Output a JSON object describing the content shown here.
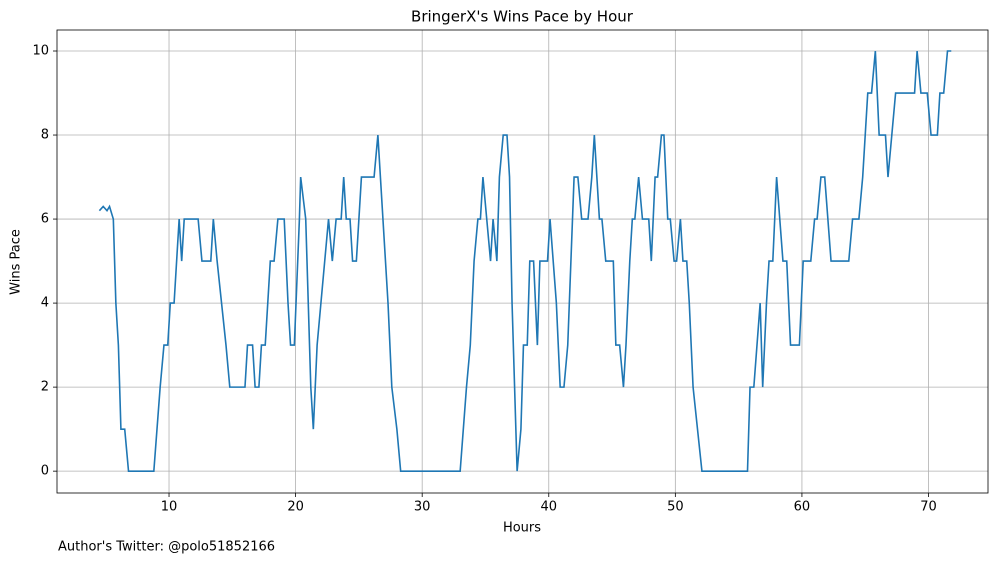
{
  "chart_data": {
    "type": "line",
    "title": "BringerX's Wins Pace by Hour",
    "x_label": "Hours",
    "y_label": "Wins Pace",
    "footnote": "Author's Twitter: @polo51852166",
    "xlim": [
      1.15,
      74.7
    ],
    "ylim": [
      -0.52,
      10.5
    ],
    "xticks": [
      10,
      20,
      30,
      40,
      50,
      60,
      70
    ],
    "yticks": [
      0,
      2,
      4,
      6,
      8,
      10
    ],
    "grid": true,
    "series": [
      {
        "name": "Wins Pace",
        "color": "#1f77b4",
        "x": [
          4.5,
          4.8,
          5.1,
          5.3,
          5.6,
          5.8,
          6.0,
          6.2,
          6.5,
          6.8,
          8.8,
          9.3,
          9.6,
          9.9,
          10.1,
          10.4,
          10.8,
          11.0,
          11.2,
          12.3,
          12.6,
          13.3,
          13.5,
          13.8,
          14.5,
          14.8,
          16.0,
          16.2,
          16.6,
          16.8,
          17.1,
          17.3,
          17.6,
          18.0,
          18.3,
          18.6,
          19.1,
          19.4,
          19.6,
          19.9,
          20.3,
          20.4,
          20.8,
          21.2,
          21.4,
          21.7,
          22.0,
          22.3,
          22.6,
          22.9,
          23.2,
          23.6,
          23.8,
          24.0,
          24.3,
          24.5,
          24.8,
          25.2,
          26.2,
          26.5,
          26.9,
          27.3,
          27.6,
          28.0,
          28.3,
          33.0,
          33.5,
          33.8,
          34.1,
          34.4,
          34.6,
          34.8,
          35.1,
          35.4,
          35.6,
          35.9,
          36.1,
          36.4,
          36.7,
          36.9,
          37.1,
          37.5,
          37.8,
          38.0,
          38.3,
          38.5,
          38.8,
          39.1,
          39.3,
          39.9,
          40.1,
          40.6,
          40.9,
          41.2,
          41.5,
          42.0,
          42.3,
          42.6,
          43.1,
          43.4,
          43.6,
          44.0,
          44.2,
          44.5,
          45.1,
          45.3,
          45.6,
          45.9,
          46.1,
          46.4,
          46.6,
          46.8,
          47.1,
          47.4,
          47.9,
          48.1,
          48.4,
          48.6,
          48.9,
          49.1,
          49.4,
          49.6,
          49.9,
          50.1,
          50.4,
          50.6,
          50.9,
          51.1,
          51.4,
          52.1,
          55.7,
          55.9,
          56.2,
          56.7,
          56.9,
          57.2,
          57.4,
          57.7,
          58.0,
          58.5,
          58.8,
          59.1,
          59.8,
          60.1,
          60.7,
          61.0,
          61.2,
          61.5,
          61.8,
          62.3,
          63.7,
          64.0,
          64.5,
          64.8,
          65.2,
          65.5,
          65.8,
          66.1,
          66.6,
          66.8,
          67.1,
          67.4,
          68.9,
          69.1,
          69.4,
          69.9,
          70.2,
          70.7,
          70.9,
          71.2,
          71.5,
          71.8
        ],
        "values": [
          6.2,
          6.3,
          6.2,
          6.3,
          6.0,
          4,
          3,
          1,
          1,
          0,
          0,
          2,
          3,
          3,
          4,
          4,
          6,
          5,
          6,
          6,
          5,
          5,
          6,
          5,
          3,
          2,
          2,
          3,
          3,
          2,
          2,
          3,
          3,
          5,
          5,
          6,
          6,
          4,
          3,
          3,
          6,
          7,
          6,
          2,
          1,
          3,
          4,
          5,
          6,
          5,
          6,
          6,
          7,
          6,
          6,
          5,
          5,
          7,
          7,
          8,
          6,
          4,
          2,
          1,
          0,
          0,
          2,
          3,
          5,
          6,
          6,
          7,
          6,
          5,
          6,
          5,
          7,
          8,
          8,
          7,
          4,
          0,
          1,
          3,
          3,
          5,
          5,
          3,
          5,
          5,
          6,
          4,
          2,
          2,
          3,
          7,
          7,
          6,
          6,
          7,
          8,
          6,
          6,
          5,
          5,
          3,
          3,
          2,
          3,
          5,
          6,
          6,
          7,
          6,
          6,
          5,
          7,
          7,
          8,
          8,
          6,
          6,
          5,
          5,
          6,
          5,
          5,
          4,
          2,
          0,
          0,
          2,
          2,
          4,
          2,
          4,
          5,
          5,
          7,
          5,
          5,
          3,
          3,
          5,
          5,
          6,
          6,
          7,
          7,
          5,
          5,
          6,
          6,
          7,
          9,
          9,
          10,
          8,
          8,
          7,
          8,
          9,
          9,
          10,
          9,
          9,
          8,
          8,
          9,
          9,
          10,
          10
        ]
      }
    ]
  }
}
